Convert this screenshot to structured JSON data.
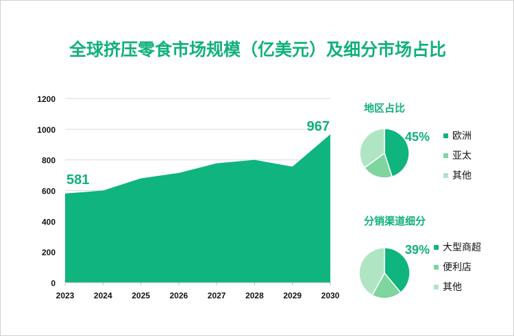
{
  "title": "全球挤压零食市场规模（亿美元）及细分市场占比",
  "chart_data": [
    {
      "type": "area",
      "x": [
        "2023",
        "2024",
        "2025",
        "2026",
        "2027",
        "2028",
        "2029",
        "2030"
      ],
      "values": [
        581,
        600,
        680,
        715,
        778,
        800,
        756,
        967
      ],
      "ylim": [
        0,
        1200
      ],
      "yticks": [
        0,
        200,
        400,
        600,
        800,
        1000,
        1200
      ],
      "labels": {
        "first": "581",
        "last": "967"
      },
      "grid": true,
      "color": "#10b47e"
    },
    {
      "type": "pie",
      "title": "地区占比",
      "categories": [
        "欧洲",
        "亚太",
        "其他"
      ],
      "values": [
        45,
        20,
        35
      ],
      "label": "45%",
      "colors": [
        "#10b47e",
        "#7ed59d",
        "#b0e5c4"
      ]
    },
    {
      "type": "pie",
      "title": "分销渠道细分",
      "categories": [
        "大型商超",
        "便利店",
        "其他"
      ],
      "values": [
        39,
        19,
        42
      ],
      "label": "39%",
      "colors": [
        "#10b47e",
        "#7ed59d",
        "#b0e5c4"
      ]
    }
  ]
}
